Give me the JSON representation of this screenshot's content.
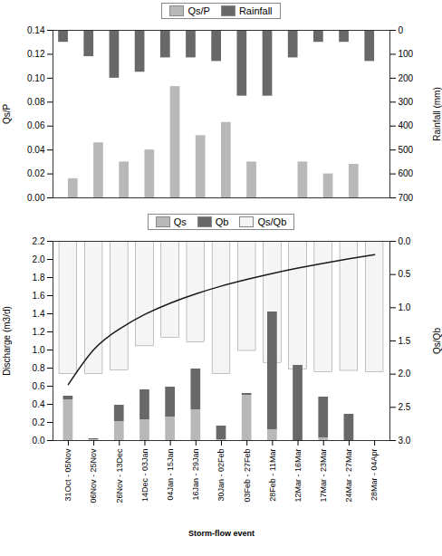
{
  "chart_data": [
    {
      "type": "bar",
      "categories": [
        "31Oct - 05Nov",
        "06Nov - 25Nov",
        "26Nov - 13Dec",
        "14Dec - 03Jan",
        "04Jan - 15Jan",
        "16Jan - 29Jan",
        "30Jan - 02Feb",
        "03Feb - 27Feb",
        "28Feb - 11Mar",
        "12Mar - 16Mar",
        "17Mar - 23Mar",
        "24Mar - 27Mar",
        "28Mar - 04Apr"
      ],
      "series": [
        {
          "name": "Qs/P",
          "color": "#b8b8b8",
          "values": [
            0.016,
            0.046,
            0.03,
            0.04,
            0.093,
            0.052,
            0.063,
            0.03,
            0.0,
            0.03,
            0.02,
            0.028,
            0.0
          ]
        },
        {
          "name": "Rainfall",
          "color": "#686868",
          "axis": "y2",
          "values": [
            50,
            110,
            200,
            175,
            115,
            115,
            130,
            275,
            275,
            115,
            50,
            50,
            130
          ]
        }
      ],
      "ylabel": "Qs/P",
      "ylim": [
        0.0,
        0.14
      ],
      "yticks": [
        {
          "value": 0.0,
          "label": "0.00"
        },
        0.02,
        0.04,
        0.06,
        0.08,
        {
          "value": 0.1,
          "label": "0.10"
        },
        0.12,
        0.14
      ],
      "y2label": "Rainfall (mm)",
      "y2lim": [
        700,
        0
      ],
      "y2ticks": [
        0,
        100,
        200,
        300,
        400,
        500,
        600,
        700
      ],
      "tick_labels": "y",
      "legend": "top"
    },
    {
      "type": "bar",
      "categories": [
        "31Oct - 05Nov",
        "06Nov - 25Nov",
        "26Nov - 13Dec",
        "14Dec - 03Jan",
        "04Jan - 15Jan",
        "16Jan - 29Jan",
        "30Jan - 02Feb",
        "03Feb - 27Feb",
        "28Feb - 11Mar",
        "12Mar - 16Mar",
        "17Mar - 23Mar",
        "24Mar - 27Mar",
        "28Mar - 04Apr"
      ],
      "series": [
        {
          "name": "Qs",
          "type": "bar",
          "color": "#b8b8b8",
          "values": [
            0.45,
            0.01,
            0.21,
            0.23,
            0.26,
            0.34,
            0.01,
            0.5,
            0.12,
            0.0,
            0.03,
            0.0,
            0.0
          ]
        },
        {
          "name": "Qb",
          "type": "bar",
          "color": "#686868",
          "values": [
            0.04,
            0.01,
            0.18,
            0.33,
            0.33,
            0.45,
            0.15,
            0.02,
            1.3,
            0.83,
            0.45,
            0.29,
            0.0
          ]
        },
        {
          "name": "Qs/Qb",
          "type": "bar",
          "color": "#f5f5f5",
          "axis": "y2",
          "values": [
            2.0,
            2.0,
            1.94,
            1.58,
            1.45,
            1.52,
            2.0,
            1.65,
            1.83,
            1.93,
            1.97,
            1.95,
            1.97
          ]
        },
        {
          "type": "line",
          "color": "#1a1a1a",
          "values": [
            0.618,
            1.005,
            1.232,
            1.393,
            1.518,
            1.62,
            1.706,
            1.78,
            1.846,
            1.905,
            1.958,
            2.007,
            2.052
          ]
        }
      ],
      "stacked": true,
      "xlabel": "Storm-flow event",
      "ylabel": "Discharge (m3/d)",
      "ylim": [
        0.0,
        2.2
      ],
      "yticks": [
        {
          "value": 0.0,
          "label": "0.0"
        },
        0.2,
        0.4,
        0.6,
        0.8,
        {
          "value": 1.0,
          "label": "1.0"
        },
        1.2,
        1.4,
        1.6,
        1.8,
        {
          "value": 2.0,
          "label": "2.0"
        },
        2.2
      ],
      "y2label": "Qs/Qb",
      "y2lim": [
        3.0,
        0.0
      ],
      "y2ticks": [
        {
          "value": 0.0,
          "label": "0.0"
        },
        0.5,
        {
          "value": 1.0,
          "label": "1.0"
        },
        1.5,
        {
          "value": 2.0,
          "label": "2.0"
        },
        2.5,
        {
          "value": 3.0,
          "label": "3.0"
        }
      ],
      "legend": "top"
    }
  ]
}
